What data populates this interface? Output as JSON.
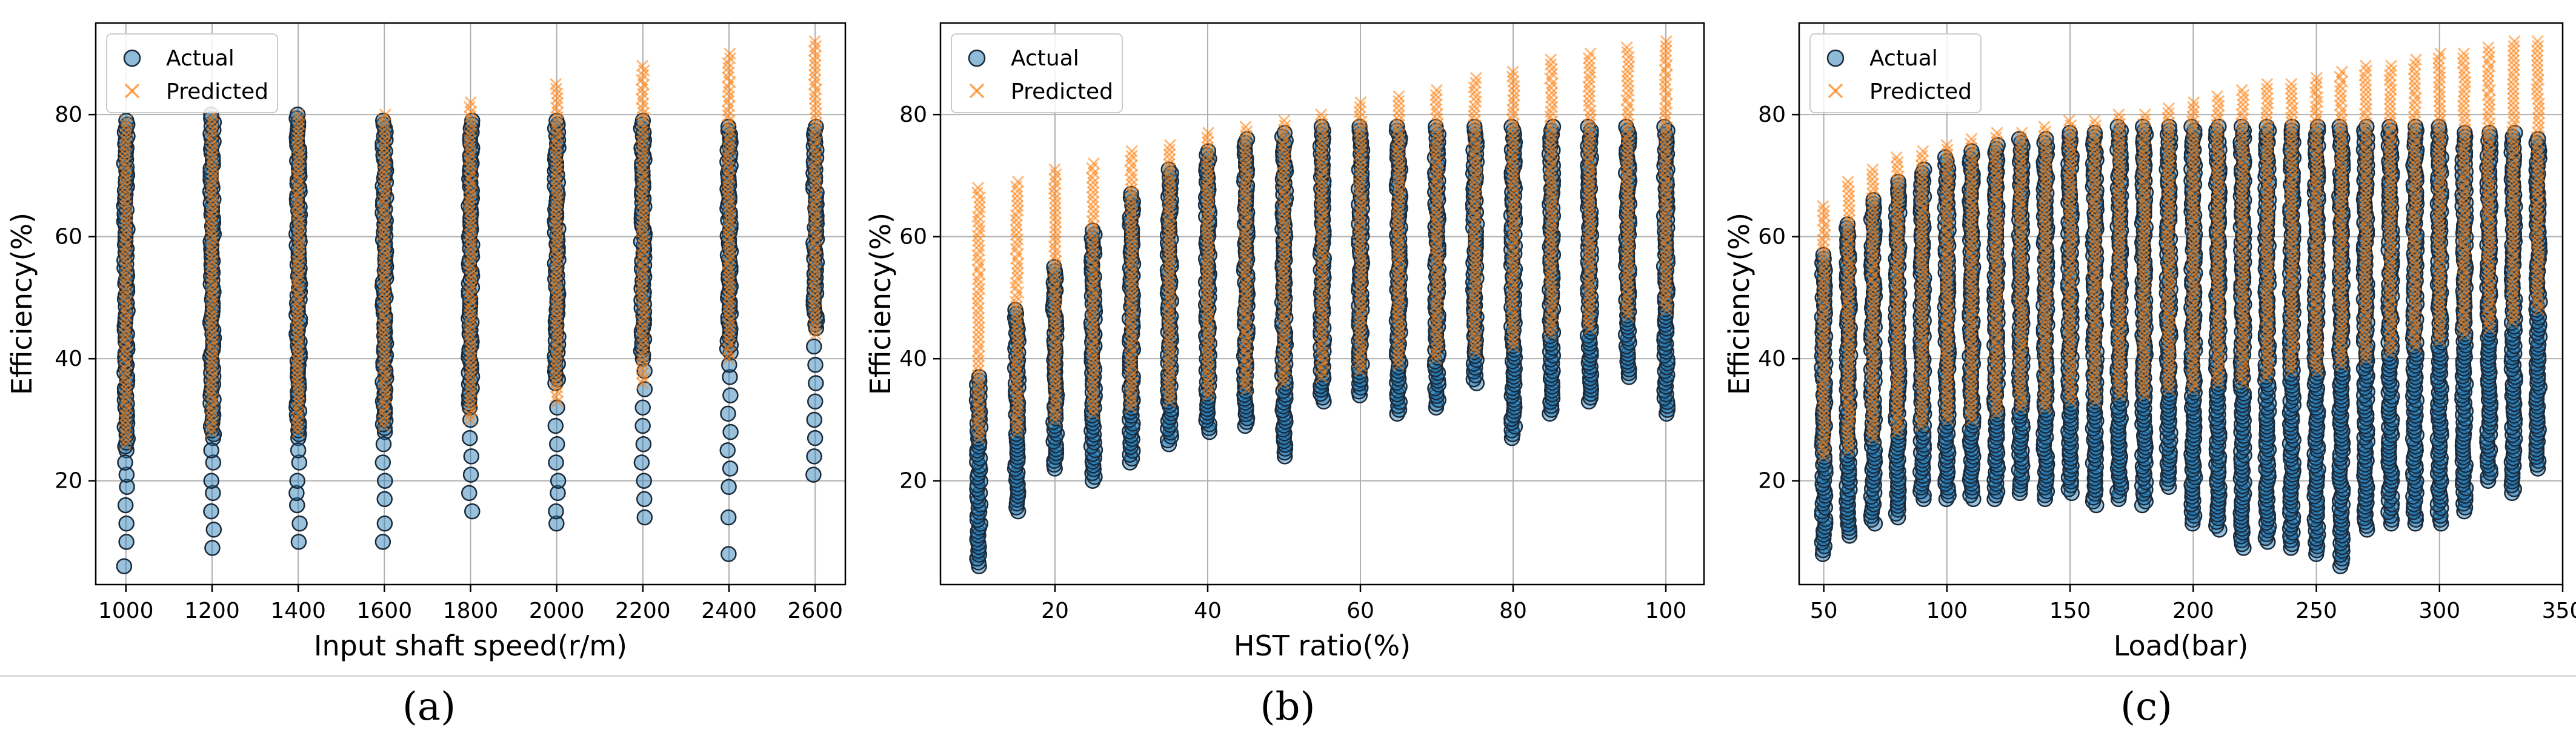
{
  "captions": [
    "(a)",
    "(b)",
    "(c)"
  ],
  "chart_data": [
    {
      "type": "scatter",
      "xlabel": "Input shaft speed(r/m)",
      "ylabel": "Efficiency(%)",
      "xlim": [
        930,
        2670
      ],
      "ylim": [
        3,
        95
      ],
      "xticks": [
        1000,
        1200,
        1400,
        1600,
        1800,
        2000,
        2200,
        2400,
        2600
      ],
      "yticks": [
        20,
        40,
        60,
        80
      ],
      "grid": true,
      "legend": "top-left",
      "series": [
        {
          "name": "Actual",
          "color": "#1f77b4",
          "points": [
            {
              "x": 1000,
              "min": 25,
              "max": 79
            },
            {
              "x": 1000,
              "low": [
                6,
                10,
                13,
                16,
                19,
                21,
                23
              ]
            },
            {
              "x": 1200,
              "min": 27,
              "max": 80
            },
            {
              "x": 1200,
              "low": [
                9,
                12,
                15,
                18,
                20,
                23,
                25
              ]
            },
            {
              "x": 1400,
              "min": 27,
              "max": 80
            },
            {
              "x": 1400,
              "low": [
                10,
                13,
                16,
                18,
                20,
                23,
                25
              ]
            },
            {
              "x": 1600,
              "min": 28,
              "max": 79
            },
            {
              "x": 1600,
              "low": [
                10,
                13,
                17,
                20,
                23,
                26
              ]
            },
            {
              "x": 1800,
              "min": 32,
              "max": 79
            },
            {
              "x": 1800,
              "low": [
                15,
                18,
                21,
                24,
                27,
                30
              ]
            },
            {
              "x": 2000,
              "min": 36,
              "max": 79
            },
            {
              "x": 2000,
              "low": [
                13,
                15,
                18,
                20,
                23,
                26,
                29,
                32
              ]
            },
            {
              "x": 2200,
              "min": 40,
              "max": 79
            },
            {
              "x": 2200,
              "low": [
                14,
                17,
                20,
                23,
                26,
                29,
                32,
                35,
                38
              ]
            },
            {
              "x": 2400,
              "min": 41,
              "max": 78
            },
            {
              "x": 2400,
              "low": [
                8,
                14,
                19,
                22,
                25,
                28,
                31,
                34,
                37,
                39
              ]
            },
            {
              "x": 2600,
              "min": 45,
              "max": 78
            },
            {
              "x": 2600,
              "low": [
                21,
                24,
                27,
                30,
                33,
                36,
                39,
                42
              ]
            }
          ]
        },
        {
          "name": "Predicted",
          "color": "#ff7f0e",
          "bands": [
            {
              "x": 1000,
              "min": 26,
              "max": 79
            },
            {
              "x": 1200,
              "min": 28,
              "max": 80
            },
            {
              "x": 1400,
              "min": 28,
              "max": 80
            },
            {
              "x": 1600,
              "min": 29,
              "max": 80
            },
            {
              "x": 1800,
              "min": 30,
              "max": 82
            },
            {
              "x": 2000,
              "min": 33,
              "max": 85
            },
            {
              "x": 2200,
              "min": 36,
              "max": 88
            },
            {
              "x": 2400,
              "min": 40,
              "max": 90
            },
            {
              "x": 2600,
              "min": 44,
              "max": 92
            }
          ]
        }
      ]
    },
    {
      "type": "scatter",
      "xlabel": "HST ratio(%)",
      "ylabel": "Efficiency(%)",
      "xlim": [
        5,
        105
      ],
      "ylim": [
        3,
        95
      ],
      "xticks": [
        20,
        40,
        60,
        80,
        100
      ],
      "yticks": [
        20,
        40,
        60,
        80
      ],
      "grid": true,
      "legend": "top-left",
      "series": [
        {
          "name": "Actual",
          "color": "#1f77b4",
          "points": [
            {
              "x": 10,
              "min": 6,
              "max": 37
            },
            {
              "x": 15,
              "min": 15,
              "max": 48
            },
            {
              "x": 20,
              "min": 22,
              "max": 55
            },
            {
              "x": 25,
              "min": 20,
              "max": 61
            },
            {
              "x": 30,
              "min": 23,
              "max": 67
            },
            {
              "x": 35,
              "min": 26,
              "max": 71
            },
            {
              "x": 40,
              "min": 28,
              "max": 74
            },
            {
              "x": 45,
              "min": 29,
              "max": 76
            },
            {
              "x": 50,
              "min": 24,
              "max": 77
            },
            {
              "x": 55,
              "min": 33,
              "max": 78
            },
            {
              "x": 60,
              "min": 34,
              "max": 78
            },
            {
              "x": 65,
              "min": 31,
              "max": 78
            },
            {
              "x": 70,
              "min": 32,
              "max": 78
            },
            {
              "x": 75,
              "min": 36,
              "max": 78
            },
            {
              "x": 80,
              "min": 27,
              "max": 78
            },
            {
              "x": 85,
              "min": 31,
              "max": 78
            },
            {
              "x": 90,
              "min": 33,
              "max": 78
            },
            {
              "x": 95,
              "min": 37,
              "max": 78
            },
            {
              "x": 100,
              "min": 31,
              "max": 78
            }
          ]
        },
        {
          "name": "Predicted",
          "color": "#ff7f0e",
          "bands": [
            {
              "x": 10,
              "min": 27,
              "max": 68
            },
            {
              "x": 15,
              "min": 28,
              "max": 69
            },
            {
              "x": 20,
              "min": 30,
              "max": 71
            },
            {
              "x": 25,
              "min": 31,
              "max": 72
            },
            {
              "x": 30,
              "min": 32,
              "max": 74
            },
            {
              "x": 35,
              "min": 33,
              "max": 75
            },
            {
              "x": 40,
              "min": 34,
              "max": 77
            },
            {
              "x": 45,
              "min": 35,
              "max": 78
            },
            {
              "x": 50,
              "min": 36,
              "max": 79
            },
            {
              "x": 55,
              "min": 37,
              "max": 80
            },
            {
              "x": 60,
              "min": 38,
              "max": 82
            },
            {
              "x": 65,
              "min": 39,
              "max": 83
            },
            {
              "x": 70,
              "min": 40,
              "max": 84
            },
            {
              "x": 75,
              "min": 41,
              "max": 86
            },
            {
              "x": 80,
              "min": 42,
              "max": 87
            },
            {
              "x": 85,
              "min": 44,
              "max": 89
            },
            {
              "x": 90,
              "min": 45,
              "max": 90
            },
            {
              "x": 95,
              "min": 47,
              "max": 91
            },
            {
              "x": 100,
              "min": 48,
              "max": 92
            }
          ]
        }
      ]
    },
    {
      "type": "scatter",
      "xlabel": "Load(bar)",
      "ylabel": "Efficiency(%)",
      "xlim": [
        40,
        350
      ],
      "ylim": [
        3,
        95
      ],
      "xticks": [
        50,
        100,
        150,
        200,
        250,
        300,
        350
      ],
      "yticks": [
        20,
        40,
        60,
        80
      ],
      "grid": true,
      "legend": "top-left",
      "series": [
        {
          "name": "Actual",
          "color": "#1f77b4",
          "points": [
            {
              "x": 50,
              "min": 8,
              "max": 57
            },
            {
              "x": 60,
              "min": 11,
              "max": 62
            },
            {
              "x": 70,
              "min": 13,
              "max": 66
            },
            {
              "x": 80,
              "min": 14,
              "max": 69
            },
            {
              "x": 90,
              "min": 17,
              "max": 71
            },
            {
              "x": 100,
              "min": 17,
              "max": 73
            },
            {
              "x": 110,
              "min": 17,
              "max": 74
            },
            {
              "x": 120,
              "min": 17,
              "max": 75
            },
            {
              "x": 130,
              "min": 18,
              "max": 76
            },
            {
              "x": 140,
              "min": 17,
              "max": 76
            },
            {
              "x": 150,
              "min": 18,
              "max": 77
            },
            {
              "x": 160,
              "min": 16,
              "max": 77
            },
            {
              "x": 170,
              "min": 17,
              "max": 78
            },
            {
              "x": 180,
              "min": 16,
              "max": 78
            },
            {
              "x": 190,
              "min": 19,
              "max": 78
            },
            {
              "x": 200,
              "min": 13,
              "max": 78
            },
            {
              "x": 210,
              "min": 12,
              "max": 78
            },
            {
              "x": 220,
              "min": 9,
              "max": 78
            },
            {
              "x": 230,
              "min": 10,
              "max": 78
            },
            {
              "x": 240,
              "min": 9,
              "max": 78
            },
            {
              "x": 250,
              "min": 8,
              "max": 78
            },
            {
              "x": 260,
              "min": 6,
              "max": 78
            },
            {
              "x": 270,
              "min": 12,
              "max": 78
            },
            {
              "x": 280,
              "min": 13,
              "max": 78
            },
            {
              "x": 290,
              "min": 13,
              "max": 78
            },
            {
              "x": 300,
              "min": 13,
              "max": 78
            },
            {
              "x": 310,
              "min": 15,
              "max": 77
            },
            {
              "x": 320,
              "min": 20,
              "max": 77
            },
            {
              "x": 330,
              "min": 18,
              "max": 77
            },
            {
              "x": 340,
              "min": 22,
              "max": 76
            }
          ]
        },
        {
          "name": "Predicted",
          "color": "#ff7f0e",
          "bands": [
            {
              "x": 50,
              "min": 24,
              "max": 65
            },
            {
              "x": 60,
              "min": 25,
              "max": 69
            },
            {
              "x": 70,
              "min": 27,
              "max": 71
            },
            {
              "x": 80,
              "min": 28,
              "max": 73
            },
            {
              "x": 90,
              "min": 29,
              "max": 74
            },
            {
              "x": 100,
              "min": 30,
              "max": 75
            },
            {
              "x": 110,
              "min": 30,
              "max": 76
            },
            {
              "x": 120,
              "min": 31,
              "max": 77
            },
            {
              "x": 130,
              "min": 32,
              "max": 77
            },
            {
              "x": 140,
              "min": 32,
              "max": 78
            },
            {
              "x": 150,
              "min": 33,
              "max": 79
            },
            {
              "x": 160,
              "min": 33,
              "max": 79
            },
            {
              "x": 170,
              "min": 34,
              "max": 80
            },
            {
              "x": 180,
              "min": 34,
              "max": 80
            },
            {
              "x": 190,
              "min": 35,
              "max": 81
            },
            {
              "x": 200,
              "min": 35,
              "max": 82
            },
            {
              "x": 210,
              "min": 36,
              "max": 83
            },
            {
              "x": 220,
              "min": 36,
              "max": 84
            },
            {
              "x": 230,
              "min": 37,
              "max": 85
            },
            {
              "x": 240,
              "min": 38,
              "max": 85
            },
            {
              "x": 250,
              "min": 38,
              "max": 86
            },
            {
              "x": 260,
              "min": 39,
              "max": 87
            },
            {
              "x": 270,
              "min": 40,
              "max": 88
            },
            {
              "x": 280,
              "min": 41,
              "max": 88
            },
            {
              "x": 290,
              "min": 42,
              "max": 89
            },
            {
              "x": 300,
              "min": 43,
              "max": 90
            },
            {
              "x": 310,
              "min": 44,
              "max": 90
            },
            {
              "x": 320,
              "min": 45,
              "max": 91
            },
            {
              "x": 330,
              "min": 46,
              "max": 92
            },
            {
              "x": 340,
              "min": 48,
              "max": 92
            }
          ]
        }
      ]
    }
  ]
}
